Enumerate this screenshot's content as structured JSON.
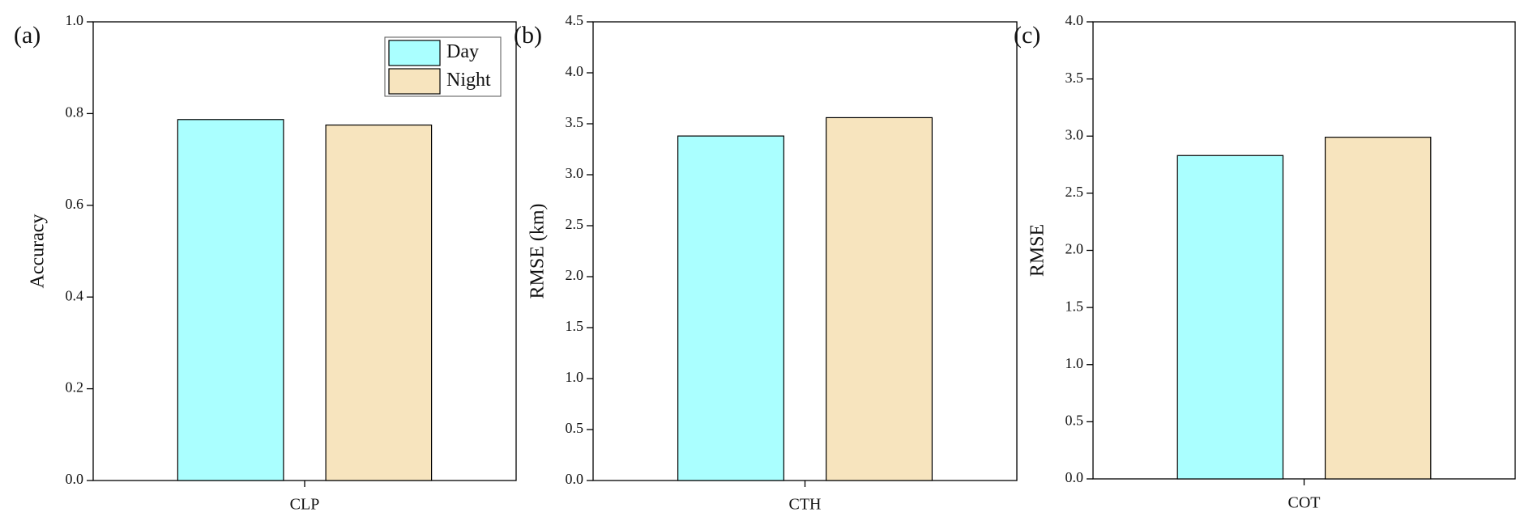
{
  "chart_data": [
    {
      "type": "bar",
      "panel_label": "(a)",
      "y_label": "Accuracy",
      "categories": [
        "CLP"
      ],
      "series": [
        {
          "name": "Day",
          "color": "#aaffff",
          "values": [
            0.787
          ]
        },
        {
          "name": "Night",
          "color": "#f7e4be",
          "values": [
            0.775
          ]
        }
      ],
      "ylim": [
        0,
        1
      ],
      "yticks": [
        {
          "value": 0,
          "label": "0.0"
        },
        0.2,
        0.4,
        0.6,
        0.8,
        {
          "value": 1,
          "label": "1.0"
        }
      ],
      "legend": "upper right"
    },
    {
      "type": "bar",
      "panel_label": "(b)",
      "y_label": "RMSE (km)",
      "categories": [
        "CTH"
      ],
      "series": [
        {
          "color": "#aaffff",
          "values": [
            3.38
          ]
        },
        {
          "color": "#f7e4be",
          "values": [
            3.56
          ]
        }
      ],
      "ylim": [
        0,
        4.5
      ],
      "yticks": [
        {
          "value": 0,
          "label": "0.0"
        },
        0.5,
        {
          "value": 1,
          "label": "1.0"
        },
        1.5,
        {
          "value": 2,
          "label": "2.0"
        },
        2.5,
        {
          "value": 3,
          "label": "3.0"
        },
        3.5,
        {
          "value": 4,
          "label": "4.0"
        },
        4.5
      ]
    },
    {
      "type": "bar",
      "panel_label": "(c)",
      "y_label": "RMSE",
      "categories": [
        "COT"
      ],
      "series": [
        {
          "color": "#aaffff",
          "values": [
            2.83
          ]
        },
        {
          "color": "#f7e4be",
          "values": [
            2.99
          ]
        }
      ],
      "ylim": [
        0,
        4
      ],
      "yticks": [
        {
          "value": 0,
          "label": "0.0"
        },
        0.5,
        {
          "value": 1,
          "label": "1.0"
        },
        1.5,
        {
          "value": 2,
          "label": "2.0"
        },
        2.5,
        {
          "value": 3,
          "label": "3.0"
        },
        3.5,
        {
          "value": 4,
          "label": "4.0"
        }
      ]
    }
  ]
}
